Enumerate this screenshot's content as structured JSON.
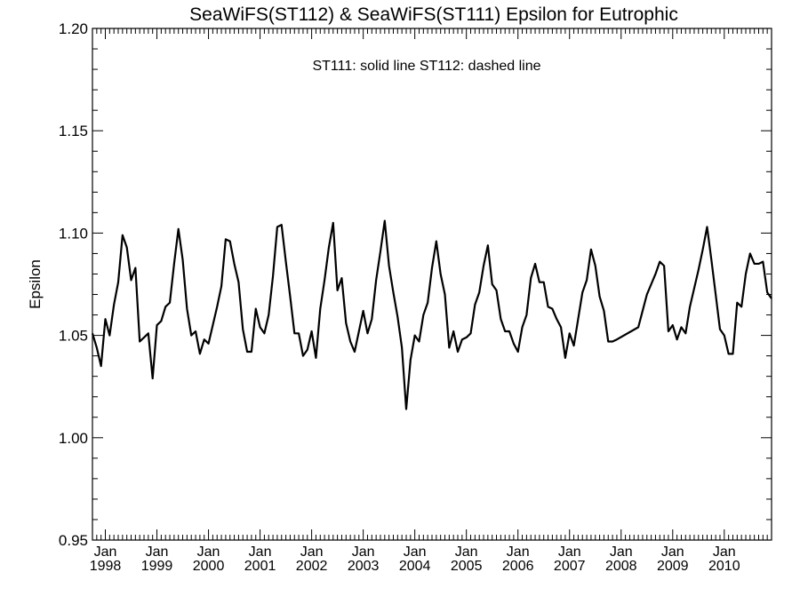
{
  "chart_data": {
    "type": "line",
    "title": "SeaWiFS(ST112) & SeaWiFS(ST111)  Epsilon for Eutrophic",
    "annotation": "ST111: solid line   ST112: dashed line",
    "xlabel": "",
    "ylabel": "Epsilon",
    "ylim": [
      0.95,
      1.2
    ],
    "xlim": [
      "1997-10",
      "2010-12"
    ],
    "grid": false,
    "yticks": [
      "0.95",
      "1.00",
      "1.05",
      "1.10",
      "1.15",
      "1.20"
    ],
    "xticks": [
      {
        "month": "Jan",
        "year": "1998"
      },
      {
        "month": "Jan",
        "year": "1999"
      },
      {
        "month": "Jan",
        "year": "2000"
      },
      {
        "month": "Jan",
        "year": "2001"
      },
      {
        "month": "Jan",
        "year": "2002"
      },
      {
        "month": "Jan",
        "year": "2003"
      },
      {
        "month": "Jan",
        "year": "2004"
      },
      {
        "month": "Jan",
        "year": "2005"
      },
      {
        "month": "Jan",
        "year": "2006"
      },
      {
        "month": "Jan",
        "year": "2007"
      },
      {
        "month": "Jan",
        "year": "2008"
      },
      {
        "month": "Jan",
        "year": "2009"
      },
      {
        "month": "Jan",
        "year": "2010"
      }
    ],
    "series": [
      {
        "color": "#000000",
        "dash": "solid",
        "points": [
          [
            "1997-10",
            1.051
          ],
          [
            "1997-11",
            1.044
          ],
          [
            "1997-12",
            1.035
          ],
          [
            "1998-01",
            1.058
          ],
          [
            "1998-02",
            1.05
          ],
          [
            "1998-03",
            1.065
          ],
          [
            "1998-04",
            1.076
          ],
          [
            "1998-05",
            1.099
          ],
          [
            "1998-06",
            1.093
          ],
          [
            "1998-07",
            1.077
          ],
          [
            "1998-08",
            1.083
          ],
          [
            "1998-09",
            1.047
          ],
          [
            "1998-10",
            1.049
          ],
          [
            "1998-11",
            1.051
          ],
          [
            "1998-12",
            1.029
          ],
          [
            "1999-01",
            1.055
          ],
          [
            "1999-02",
            1.057
          ],
          [
            "1999-03",
            1.064
          ],
          [
            "1999-04",
            1.066
          ],
          [
            "1999-05",
            1.085
          ],
          [
            "1999-06",
            1.102
          ],
          [
            "1999-07",
            1.087
          ],
          [
            "1999-08",
            1.063
          ],
          [
            "1999-09",
            1.05
          ],
          [
            "1999-10",
            1.052
          ],
          [
            "1999-11",
            1.041
          ],
          [
            "1999-12",
            1.048
          ],
          [
            "2000-01",
            1.046
          ],
          [
            "2000-02",
            1.055
          ],
          [
            "2000-03",
            1.064
          ],
          [
            "2000-04",
            1.074
          ],
          [
            "2000-05",
            1.097
          ],
          [
            "2000-06",
            1.096
          ],
          [
            "2000-07",
            1.085
          ],
          [
            "2000-08",
            1.076
          ],
          [
            "2000-09",
            1.053
          ],
          [
            "2000-10",
            1.042
          ],
          [
            "2000-11",
            1.042
          ],
          [
            "2000-12",
            1.063
          ],
          [
            "2001-01",
            1.054
          ],
          [
            "2001-02",
            1.051
          ],
          [
            "2001-03",
            1.06
          ],
          [
            "2001-04",
            1.079
          ],
          [
            "2001-05",
            1.103
          ],
          [
            "2001-06",
            1.104
          ],
          [
            "2001-07",
            1.086
          ],
          [
            "2001-08",
            1.069
          ],
          [
            "2001-09",
            1.051
          ],
          [
            "2001-10",
            1.051
          ],
          [
            "2001-11",
            1.04
          ],
          [
            "2001-12",
            1.043
          ],
          [
            "2002-01",
            1.052
          ],
          [
            "2002-02",
            1.039
          ],
          [
            "2002-03",
            1.063
          ],
          [
            "2002-04",
            1.077
          ],
          [
            "2002-05",
            1.093
          ],
          [
            "2002-06",
            1.105
          ],
          [
            "2002-07",
            1.072
          ],
          [
            "2002-08",
            1.078
          ],
          [
            "2002-09",
            1.056
          ],
          [
            "2002-10",
            1.047
          ],
          [
            "2002-11",
            1.042
          ],
          [
            "2002-12",
            1.052
          ],
          [
            "2003-01",
            1.062
          ],
          [
            "2003-02",
            1.051
          ],
          [
            "2003-03",
            1.058
          ],
          [
            "2003-04",
            1.077
          ],
          [
            "2003-05",
            1.091
          ],
          [
            "2003-06",
            1.106
          ],
          [
            "2003-07",
            1.084
          ],
          [
            "2003-08",
            1.071
          ],
          [
            "2003-09",
            1.059
          ],
          [
            "2003-10",
            1.044
          ],
          [
            "2003-11",
            1.014
          ],
          [
            "2003-12",
            1.038
          ],
          [
            "2004-01",
            1.05
          ],
          [
            "2004-02",
            1.047
          ],
          [
            "2004-03",
            1.06
          ],
          [
            "2004-04",
            1.066
          ],
          [
            "2004-05",
            1.083
          ],
          [
            "2004-06",
            1.096
          ],
          [
            "2004-07",
            1.08
          ],
          [
            "2004-08",
            1.07
          ],
          [
            "2004-09",
            1.044
          ],
          [
            "2004-10",
            1.052
          ],
          [
            "2004-11",
            1.042
          ],
          [
            "2004-12",
            1.048
          ],
          [
            "2005-01",
            1.049
          ],
          [
            "2005-02",
            1.051
          ],
          [
            "2005-03",
            1.065
          ],
          [
            "2005-04",
            1.071
          ],
          [
            "2005-05",
            1.084
          ],
          [
            "2005-06",
            1.094
          ],
          [
            "2005-07",
            1.075
          ],
          [
            "2005-08",
            1.072
          ],
          [
            "2005-09",
            1.058
          ],
          [
            "2005-10",
            1.052
          ],
          [
            "2005-11",
            1.052
          ],
          [
            "2005-12",
            1.046
          ],
          [
            "2006-01",
            1.042
          ],
          [
            "2006-02",
            1.054
          ],
          [
            "2006-03",
            1.06
          ],
          [
            "2006-04",
            1.078
          ],
          [
            "2006-05",
            1.085
          ],
          [
            "2006-06",
            1.076
          ],
          [
            "2006-07",
            1.076
          ],
          [
            "2006-08",
            1.064
          ],
          [
            "2006-09",
            1.063
          ],
          [
            "2006-10",
            1.058
          ],
          [
            "2006-11",
            1.054
          ],
          [
            "2006-12",
            1.039
          ],
          [
            "2007-01",
            1.051
          ],
          [
            "2007-02",
            1.045
          ],
          [
            "2007-03",
            1.058
          ],
          [
            "2007-04",
            1.071
          ],
          [
            "2007-05",
            1.077
          ],
          [
            "2007-06",
            1.092
          ],
          [
            "2007-07",
            1.084
          ],
          [
            "2007-08",
            1.069
          ],
          [
            "2007-09",
            1.062
          ],
          [
            "2007-10",
            1.047
          ],
          [
            "2007-11",
            1.047
          ],
          [
            "2007-12",
            1.048
          ],
          [
            "2008-05",
            1.054
          ],
          [
            "2008-06",
            1.062
          ],
          [
            "2008-07",
            1.07
          ],
          [
            "2008-08",
            1.075
          ],
          [
            "2008-09",
            1.08
          ],
          [
            "2008-10",
            1.086
          ],
          [
            "2008-11",
            1.084
          ],
          [
            "2008-12",
            1.052
          ],
          [
            "2009-01",
            1.055
          ],
          [
            "2009-02",
            1.048
          ],
          [
            "2009-03",
            1.054
          ],
          [
            "2009-04",
            1.051
          ],
          [
            "2009-05",
            1.064
          ],
          [
            "2009-06",
            1.073
          ],
          [
            "2009-07",
            1.082
          ],
          [
            "2009-08",
            1.092
          ],
          [
            "2009-09",
            1.103
          ],
          [
            "2009-10",
            1.087
          ],
          [
            "2009-11",
            1.07
          ],
          [
            "2009-12",
            1.053
          ],
          [
            "2010-01",
            1.05
          ],
          [
            "2010-02",
            1.041
          ],
          [
            "2010-03",
            1.041
          ],
          [
            "2010-04",
            1.066
          ],
          [
            "2010-05",
            1.064
          ],
          [
            "2010-06",
            1.08
          ],
          [
            "2010-07",
            1.09
          ],
          [
            "2010-08",
            1.085
          ],
          [
            "2010-09",
            1.085
          ],
          [
            "2010-10",
            1.086
          ],
          [
            "2010-11",
            1.071
          ],
          [
            "2010-12",
            1.068
          ]
        ]
      }
    ]
  }
}
